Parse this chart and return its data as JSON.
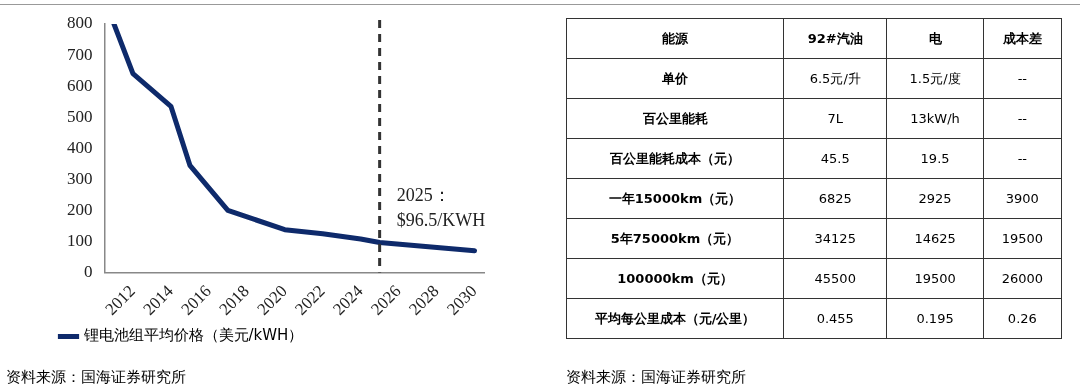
{
  "chart_data": [
    {
      "type": "line",
      "x": [
        2011,
        2012,
        2014,
        2015,
        2017,
        2020,
        2022,
        2024,
        2025,
        2030
      ],
      "series": [
        {
          "name": "锂电池组平均价格（美元/kWH）",
          "color": "#0e2a6b",
          "values": [
            800,
            640,
            535,
            345,
            200,
            138,
            125,
            108,
            96.5,
            70
          ]
        }
      ],
      "xlim": [
        2010.5,
        2030.5
      ],
      "xticks": [
        2012,
        2014,
        2016,
        2018,
        2020,
        2022,
        2024,
        2026,
        2028,
        2030
      ],
      "ylim": [
        0,
        800
      ],
      "yticks": [
        0,
        100,
        200,
        300,
        400,
        500,
        600,
        700,
        800
      ],
      "grid": false,
      "legend": "bottom",
      "marker": "none",
      "line_style": "solid",
      "ref_lines": [
        {
          "axis": "x",
          "value": 2025,
          "label": "2025：\n$96.5/KWH",
          "color": "#333333",
          "line_style": "dashed"
        }
      ],
      "annotations": [
        "资料来源：国海证券研究所"
      ]
    },
    {
      "type": "other",
      "categories": [
        "能源",
        "92#汽油",
        "电",
        "成本差"
      ],
      "y_categories": [
        "单价",
        "百公里能耗",
        "百公里能耗成本（元）",
        "一年15000km（元）",
        "5年75000km（元）",
        "100000km（元）",
        "平均每公里成本（元/公里）"
      ],
      "cell_labels": [
        [
          "6.5元/升",
          "1.5元/度",
          "--"
        ],
        [
          "7L",
          "13kW/h",
          "--"
        ],
        [
          "45.5",
          "19.5",
          "--"
        ],
        [
          "6825",
          "2925",
          "3900"
        ],
        [
          "34125",
          "14625",
          "19500"
        ],
        [
          "45500",
          "19500",
          "26000"
        ],
        [
          "0.455",
          "0.195",
          "0.26"
        ]
      ],
      "annotations": [
        "资料来源：国海证券研究所"
      ]
    }
  ]
}
